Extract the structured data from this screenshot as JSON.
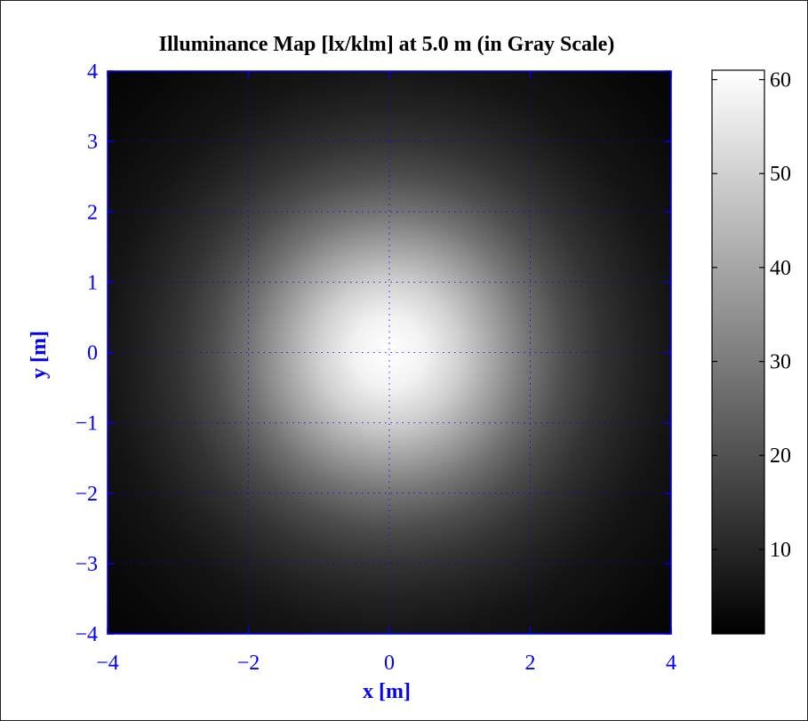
{
  "chart_data": {
    "type": "heatmap",
    "title": "Illuminance Map [lx/klm] at 5.0 m (in Gray Scale)",
    "xlabel": "x [m]",
    "ylabel": "y [m]",
    "xlim": [
      -4,
      4
    ],
    "ylim": [
      -4,
      4
    ],
    "xticks": [
      -4,
      -2,
      0,
      2,
      4
    ],
    "yticks": [
      -4,
      -3,
      -2,
      -1,
      0,
      1,
      2,
      3,
      4
    ],
    "xtick_labels": [
      "−4",
      "−2",
      "0",
      "2",
      "4"
    ],
    "ytick_labels": [
      "−4",
      "−3",
      "−2",
      "−1",
      "0",
      "1",
      "2",
      "3",
      "4"
    ],
    "grid": true,
    "colormap": "gray",
    "color_range": [
      1,
      61
    ],
    "peak": {
      "x": 0,
      "y": 0,
      "value": 61
    },
    "profile": {
      "description": "radial illuminance falloff from center",
      "radius_m": [
        0,
        0.5,
        1.0,
        1.5,
        2.0,
        2.5,
        3.0,
        3.5,
        4.0,
        5.0,
        5.66
      ],
      "value": [
        61,
        58,
        50,
        39,
        28,
        19,
        13,
        9,
        6,
        3,
        2
      ]
    },
    "colorbar": {
      "ticks": [
        10,
        20,
        30,
        40,
        50,
        60
      ],
      "tick_labels": [
        "10",
        "20",
        "30",
        "40",
        "50",
        "60"
      ]
    },
    "colors": {
      "axis": "#0000ff",
      "grid": "#0000ff",
      "text": "#000000"
    }
  }
}
